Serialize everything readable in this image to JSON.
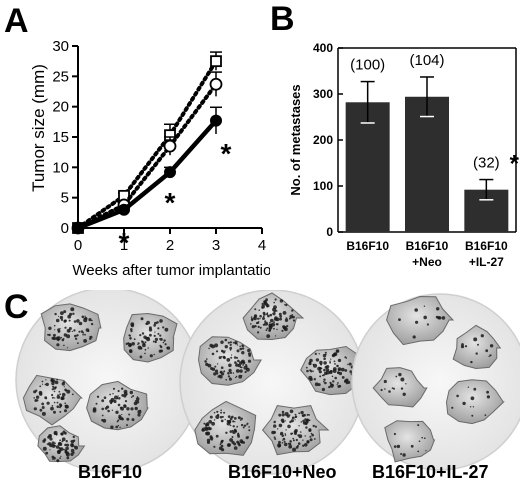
{
  "panels": {
    "a": {
      "letter": "A"
    },
    "b": {
      "letter": "B"
    },
    "c": {
      "letter": "C"
    }
  },
  "chart_data": [
    {
      "type": "line",
      "panel": "A",
      "xlabel": "Weeks after tumor implantation",
      "ylabel": "Tumor size (mm)",
      "xlim": [
        0,
        4
      ],
      "ylim": [
        0,
        30
      ],
      "xticks": [
        0,
        1,
        2,
        3,
        4
      ],
      "yticks": [
        0,
        5,
        10,
        15,
        20,
        25,
        30
      ],
      "grid": false,
      "x": [
        0,
        1,
        2,
        3
      ],
      "series": [
        {
          "marker": "open-square",
          "line": "dotted",
          "values": [
            0,
            5.3,
            15.3,
            27.5
          ],
          "errors": [
            0,
            0.5,
            1.8,
            1.5
          ]
        },
        {
          "marker": "open-circle",
          "line": "dotted",
          "values": [
            0,
            3.8,
            13.5,
            23.7
          ],
          "errors": [
            0,
            0.4,
            1.5,
            2.0
          ]
        },
        {
          "marker": "filled-circle",
          "line": "solid",
          "values": [
            0,
            3.0,
            9.2,
            17.7
          ],
          "errors": [
            0,
            0.3,
            0.8,
            2.2
          ]
        }
      ],
      "significance": [
        {
          "x": 1,
          "y": -2.3,
          "text": "*"
        },
        {
          "x": 2,
          "y": 4.3,
          "text": "*"
        },
        {
          "x": 3,
          "y": 12.4,
          "text": "*"
        }
      ]
    },
    {
      "type": "bar",
      "panel": "B",
      "ylabel": "No. of metastases",
      "ylim": [
        0,
        400
      ],
      "yticks": [
        0,
        100,
        200,
        300,
        400
      ],
      "grid": false,
      "categories": [
        [
          "B16F10"
        ],
        [
          "B16F10",
          "+Neo"
        ],
        [
          "B16F10",
          "+IL-27"
        ]
      ],
      "values": [
        282,
        294,
        92
      ],
      "errors": [
        45,
        43,
        22
      ],
      "data_labels": [
        "(100)",
        "(104)",
        "(32)"
      ],
      "significance": [
        null,
        null,
        "*"
      ]
    }
  ],
  "photos": {
    "labels": [
      "B16F10",
      "B16F10+Neo",
      "B16F10+IL-27"
    ]
  }
}
